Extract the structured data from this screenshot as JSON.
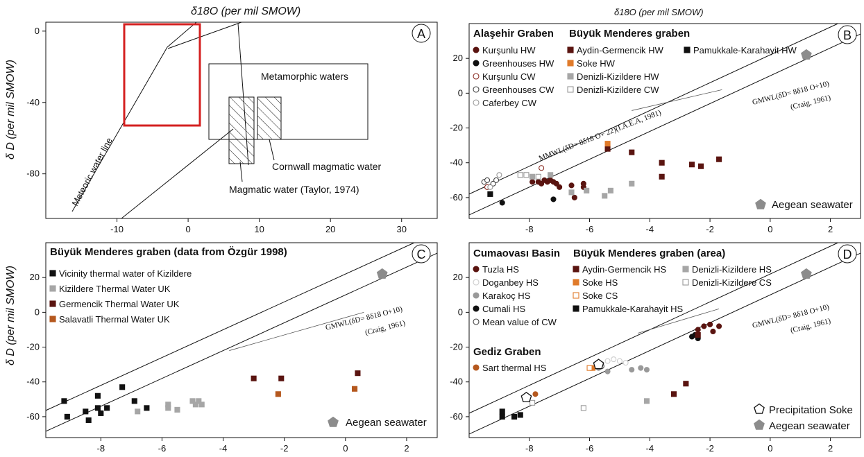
{
  "top_label": "δ18O (per mil SMOW)",
  "top_label_b": "δ18O (per mil SMOW)",
  "ylabel_top": "δ D (per mil SMOW)",
  "ylabel_bottom": "δ D (per mil SMOW)",
  "chart_data": [
    {
      "panel": "A",
      "type": "line",
      "xlim": [
        -20,
        35
      ],
      "ylim": [
        -105,
        5
      ],
      "x_ticks": [
        "-10",
        "0",
        "10",
        "20",
        "30"
      ],
      "y_ticks": [
        "0",
        "-40",
        "-80"
      ],
      "annotations": {
        "metamorphic": "Metamorphic waters",
        "cornwall": "Cornwall magmatic water",
        "magmatic": "Magmatic water (Taylor, 1974)",
        "meteoric": "Meteoric water line"
      },
      "boxes": [
        {
          "name": "Metamorphic waters",
          "x": [
            3,
            28
          ],
          "y": [
            -65,
            -20
          ]
        },
        {
          "name": "Magmatic water (Taylor, 1974)",
          "x": [
            5,
            9
          ],
          "y": [
            -80,
            -40
          ]
        },
        {
          "name": "Cornwall magmatic water",
          "x": [
            9,
            13
          ],
          "y": [
            -65,
            -40
          ]
        },
        {
          "name": "zoom area",
          "x": [
            -9.5,
            1.5
          ],
          "y": [
            -56,
            2
          ]
        }
      ]
    },
    {
      "panel": "B",
      "type": "scatter",
      "xlim": [
        -10,
        3
      ],
      "ylim": [
        -72,
        40
      ],
      "x_ticks": [
        "-8",
        "-6",
        "-4",
        "-2",
        "0",
        "2"
      ],
      "y_ticks": [
        "20",
        "0",
        "-20",
        "-40",
        "-60"
      ],
      "lines": {
        "mmwl": "MMWL(δD= 8δ18 O+ 22)(I.A.E.A, 1981)",
        "gmwl1": "GMWL(δD= 8δ18 O+10)",
        "gmwl2": "(Craig, 1961)"
      },
      "legend_titles": [
        "Alaşehir Graben",
        "Büyük Menderes graben"
      ],
      "marker_label": "Aegean seawater",
      "series": [
        {
          "name": "Kurşunlu HW",
          "marker": "circle",
          "color": "#5a1410",
          "fill": true,
          "points": [
            [
              -7.9,
              -51
            ],
            [
              -7.7,
              -51
            ],
            [
              -7.6,
              -52
            ],
            [
              -7.5,
              -50
            ],
            [
              -7.4,
              -51
            ],
            [
              -7.3,
              -50
            ],
            [
              -7.2,
              -51
            ],
            [
              -7.1,
              -52
            ],
            [
              -7.0,
              -54
            ],
            [
              -6.6,
              -53
            ],
            [
              -6.5,
              -60
            ],
            [
              -6.2,
              -52
            ],
            [
              -6.2,
              -54
            ]
          ]
        },
        {
          "name": "Greenhouses HW",
          "marker": "circle",
          "color": "#111111",
          "fill": true,
          "points": [
            [
              -8.9,
              -63
            ],
            [
              -7.2,
              -61
            ]
          ]
        },
        {
          "name": "Kurşunlu CW",
          "marker": "circle",
          "color": "#8a2b22",
          "fill": false,
          "points": [
            [
              -9.4,
              -54
            ],
            [
              -7.6,
              -43
            ]
          ]
        },
        {
          "name": "Greenhouses CW",
          "marker": "circle",
          "color": "#444444",
          "fill": false,
          "points": [
            [
              -9.5,
              -51
            ],
            [
              -9.4,
              -50
            ],
            [
              -9.2,
              -52
            ],
            [
              -9.1,
              -50
            ]
          ]
        },
        {
          "name": "Caferbey CW",
          "marker": "circle",
          "color": "#999999",
          "fill": false,
          "points": [
            [
              -9.3,
              -54
            ],
            [
              -9.0,
              -47
            ]
          ]
        },
        {
          "name": "Aydin-Germencik HW",
          "marker": "square",
          "color": "#5a1410",
          "fill": true,
          "points": [
            [
              -5.4,
              -32
            ],
            [
              -4.6,
              -34
            ],
            [
              -3.6,
              -40
            ],
            [
              -3.6,
              -48
            ],
            [
              -2.6,
              -41
            ],
            [
              -2.3,
              -42
            ],
            [
              -1.7,
              -38
            ]
          ]
        },
        {
          "name": "Soke HW",
          "marker": "square",
          "color": "#e07b2a",
          "fill": true,
          "points": [
            [
              -5.4,
              -29
            ]
          ]
        },
        {
          "name": "Denizli-Kizildere HW",
          "marker": "square",
          "color": "#a6a6a6",
          "fill": true,
          "points": [
            [
              -7.9,
              -48
            ],
            [
              -7.3,
              -47
            ],
            [
              -6.6,
              -57
            ],
            [
              -6.1,
              -56
            ],
            [
              -5.5,
              -59
            ],
            [
              -5.3,
              -56
            ],
            [
              -4.6,
              -52
            ]
          ]
        },
        {
          "name": "Denizli-Kizildere CW",
          "marker": "square",
          "color": "#999999",
          "fill": false,
          "points": [
            [
              -8.3,
              -47
            ],
            [
              -8.1,
              -47
            ],
            [
              -7.7,
              -48
            ]
          ]
        },
        {
          "name": "Pamukkale-Karahayit HW",
          "marker": "square",
          "color": "#111111",
          "fill": true,
          "points": [
            [
              -9.3,
              -58
            ]
          ]
        },
        {
          "name": "Aegean seawater",
          "marker": "pentagon",
          "color": "#8c8c8c",
          "fill": true,
          "points": [
            [
              1.2,
              22
            ]
          ]
        }
      ]
    },
    {
      "panel": "C",
      "type": "scatter",
      "xlim": [
        -9.8,
        3
      ],
      "ylim": [
        -72,
        40
      ],
      "x_ticks": [
        "-8",
        "-6",
        "-4",
        "-2",
        "0",
        "2"
      ],
      "y_ticks": [
        "20",
        "0",
        "-20",
        "-40",
        "-60"
      ],
      "lines": {
        "gmwl1": "GMWL(δD= 8δ18 O+10)",
        "gmwl2": "(Craig, 1961)"
      },
      "legend_title": "Büyük Menderes graben (data from Özgür 1998)",
      "marker_label": "Aegean seawater",
      "series": [
        {
          "name": "Vicinity thermal water of Kizildere",
          "marker": "square",
          "color": "#111111",
          "fill": true,
          "points": [
            [
              -9.2,
              -51
            ],
            [
              -9.1,
              -60
            ],
            [
              -8.5,
              -57
            ],
            [
              -8.4,
              -62
            ],
            [
              -8.1,
              -48
            ],
            [
              -8.1,
              -55
            ],
            [
              -8.0,
              -58
            ],
            [
              -7.8,
              -55
            ],
            [
              -7.3,
              -43
            ],
            [
              -6.9,
              -51
            ],
            [
              -6.5,
              -55
            ]
          ]
        },
        {
          "name": "Kizildere Thermal Water UK",
          "marker": "square",
          "color": "#a6a6a6",
          "fill": true,
          "points": [
            [
              -6.8,
              -57
            ],
            [
              -5.8,
              -55
            ],
            [
              -5.8,
              -53
            ],
            [
              -5.5,
              -56
            ],
            [
              -5.0,
              -51
            ],
            [
              -4.9,
              -53
            ],
            [
              -4.8,
              -51
            ],
            [
              -4.7,
              -53
            ]
          ]
        },
        {
          "name": "Germencik Thermal Water UK",
          "marker": "square",
          "color": "#5a1410",
          "fill": true,
          "points": [
            [
              -3.0,
              -38
            ],
            [
              -2.1,
              -38
            ],
            [
              0.4,
              -35
            ]
          ]
        },
        {
          "name": "Salavatli Thermal Water UK",
          "marker": "square",
          "color": "#b5581e",
          "fill": true,
          "points": [
            [
              -2.2,
              -47
            ],
            [
              0.3,
              -44
            ]
          ]
        },
        {
          "name": "Aegean seawater",
          "marker": "pentagon",
          "color": "#8c8c8c",
          "fill": true,
          "points": [
            [
              1.2,
              22
            ]
          ]
        }
      ]
    },
    {
      "panel": "D",
      "type": "scatter",
      "xlim": [
        -10,
        3
      ],
      "ylim": [
        -72,
        40
      ],
      "x_ticks": [
        "-8",
        "-6",
        "-4",
        "-2",
        "0",
        "2"
      ],
      "y_ticks": [
        "20",
        "0",
        "-20",
        "-40",
        "-60"
      ],
      "lines": {
        "gmwl1": "GMWL(δD= 8δ18 O+10)",
        "gmwl2": "(Craig, 1961)"
      },
      "legend_titles": [
        "Cumaovası Basin",
        "Büyük Menderes graben (area)",
        "Gediz Graben"
      ],
      "marker_labels": [
        "Precipitation Soke",
        "Aegean seawater"
      ],
      "series": [
        {
          "name": "Tuzla HS",
          "marker": "circle",
          "color": "#5a1410",
          "fill": true,
          "points": [
            [
              -2.4,
              -10
            ],
            [
              -2.2,
              -8
            ],
            [
              -2.0,
              -7
            ],
            [
              -1.9,
              -11
            ],
            [
              -1.7,
              -8
            ]
          ]
        },
        {
          "name": "Doganbey HS",
          "marker": "circle",
          "color": "#cccccc",
          "fill": false,
          "points": [
            [
              -5.6,
              -30
            ],
            [
              -5.4,
              -28
            ],
            [
              -5.2,
              -27
            ],
            [
              -5.0,
              -28
            ],
            [
              -4.8,
              -29
            ]
          ]
        },
        {
          "name": "Karakoç HS",
          "marker": "circle",
          "color": "#999999",
          "fill": true,
          "points": [
            [
              -5.7,
              -32
            ],
            [
              -5.4,
              -34
            ],
            [
              -4.6,
              -33
            ],
            [
              -4.3,
              -32
            ],
            [
              -4.1,
              -33
            ]
          ]
        },
        {
          "name": "Cumali HS",
          "marker": "circle",
          "color": "#111111",
          "fill": true,
          "points": [
            [
              -2.6,
              -14
            ],
            [
              -2.5,
              -13
            ],
            [
              -2.4,
              -15
            ],
            [
              -5.7,
              -29
            ]
          ]
        },
        {
          "name": "Mean value of CW",
          "marker": "circle",
          "color": "#444444",
          "fill": false,
          "points": [
            [
              -5.6,
              -31
            ]
          ]
        },
        {
          "name": "Sart thermal HS",
          "marker": "circle",
          "color": "#b5581e",
          "fill": true,
          "points": [
            [
              -7.8,
              -47
            ]
          ]
        },
        {
          "name": "Aydin-Germencik HS",
          "marker": "square",
          "color": "#5a1410",
          "fill": true,
          "points": [
            [
              -3.2,
              -47
            ],
            [
              -2.8,
              -41
            ],
            [
              -2.4,
              -13
            ]
          ]
        },
        {
          "name": "Soke HS",
          "marker": "square",
          "color": "#e07b2a",
          "fill": true,
          "points": [
            [
              -5.9,
              -32
            ]
          ]
        },
        {
          "name": "Soke CS",
          "marker": "square",
          "color": "#e07b2a",
          "fill": false,
          "points": [
            [
              -6.0,
              -32
            ]
          ]
        },
        {
          "name": "Denizli-Kizildere HS",
          "marker": "square",
          "color": "#a6a6a6",
          "fill": true,
          "points": [
            [
              -4.1,
              -51
            ]
          ]
        },
        {
          "name": "Denizli-Kizildere CS",
          "marker": "square",
          "color": "#999999",
          "fill": false,
          "points": [
            [
              -7.9,
              -52
            ],
            [
              -6.2,
              -55
            ]
          ]
        },
        {
          "name": "Pamukkale-Karahayit HS",
          "marker": "square",
          "color": "#111111",
          "fill": true,
          "points": [
            [
              -8.9,
              -57
            ],
            [
              -8.9,
              -60
            ],
            [
              -8.5,
              -60
            ],
            [
              -8.3,
              -59
            ]
          ]
        },
        {
          "name": "Precipitation Soke",
          "marker": "pentagon",
          "color": "#111111",
          "fill": false,
          "points": [
            [
              -8.1,
              -49
            ],
            [
              -5.7,
              -30
            ]
          ]
        },
        {
          "name": "Aegean seawater",
          "marker": "pentagon",
          "color": "#8c8c8c",
          "fill": true,
          "points": [
            [
              1.2,
              22
            ]
          ]
        }
      ]
    }
  ]
}
